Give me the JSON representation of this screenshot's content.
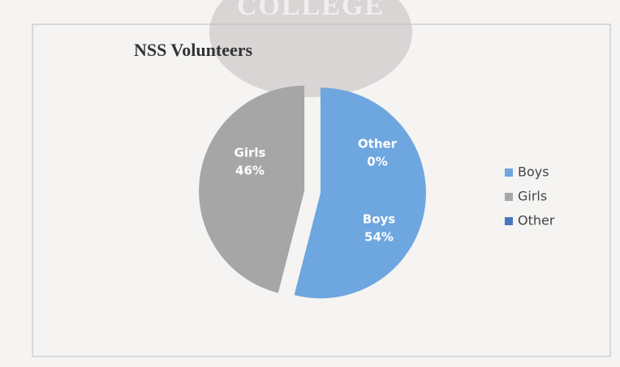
{
  "chart_data": {
    "type": "pie",
    "title": "NSS Volunteers",
    "watermark": "COLLEGE",
    "categories": [
      "Boys",
      "Girls",
      "Other"
    ],
    "values": [
      54,
      46,
      0
    ],
    "value_labels": [
      "54%",
      "46%",
      "0%"
    ],
    "colors": [
      "#6ea6df",
      "#a6a6a6",
      "#4a76c0"
    ],
    "legend": "right"
  }
}
